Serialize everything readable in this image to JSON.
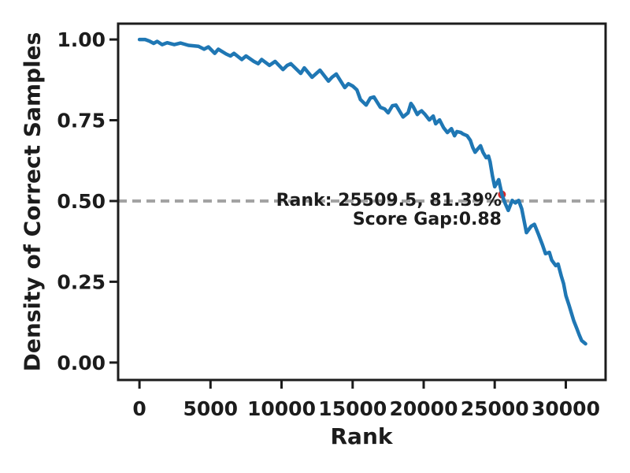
{
  "chart_data": {
    "type": "line",
    "xlabel": "Rank",
    "ylabel": "Density of Correct Samples",
    "x_ticks": [
      {
        "v": 0,
        "label": "0"
      },
      {
        "v": 5000,
        "label": "5000"
      },
      {
        "v": 10000,
        "label": "10000"
      },
      {
        "v": 15000,
        "label": "15000"
      },
      {
        "v": 20000,
        "label": "20000"
      },
      {
        "v": 25000,
        "label": "25000"
      },
      {
        "v": 30000,
        "label": "30000"
      }
    ],
    "y_ticks": [
      {
        "v": 0,
        "label": "0.00"
      },
      {
        "v": 0.25,
        "label": "0.25"
      },
      {
        "v": 0.5,
        "label": "0.50"
      },
      {
        "v": 0.75,
        "label": "0.75"
      },
      {
        "v": 1.0,
        "label": "1.00"
      }
    ],
    "xlim": [
      -1500,
      32800
    ],
    "ylim": [
      -0.054,
      1.049
    ],
    "grid": false,
    "legend": "none",
    "threshold": {
      "y": 0.5,
      "style": "dashed",
      "color": "#a3a3a3"
    },
    "annotation": {
      "line1": "Rank: 25509.5, 81.39%",
      "line2": "Score Gap:0.88"
    },
    "marker": {
      "rank": 25509.5,
      "density": 0.52,
      "color": "#d62728"
    },
    "series": [
      {
        "name": "density-of-correct-samples",
        "color": "#1f77b4",
        "points": [
          [
            0,
            1.0
          ],
          [
            400,
            1.0
          ],
          [
            700,
            0.995
          ],
          [
            1000,
            0.988
          ],
          [
            1250,
            0.994
          ],
          [
            1600,
            0.984
          ],
          [
            1950,
            0.99
          ],
          [
            2450,
            0.984
          ],
          [
            2900,
            0.989
          ],
          [
            3450,
            0.982
          ],
          [
            4150,
            0.979
          ],
          [
            4550,
            0.97
          ],
          [
            4850,
            0.977
          ],
          [
            5300,
            0.957
          ],
          [
            5550,
            0.97
          ],
          [
            6100,
            0.955
          ],
          [
            6400,
            0.949
          ],
          [
            6650,
            0.957
          ],
          [
            7200,
            0.938
          ],
          [
            7500,
            0.949
          ],
          [
            8050,
            0.932
          ],
          [
            8350,
            0.925
          ],
          [
            8600,
            0.938
          ],
          [
            9150,
            0.92
          ],
          [
            9550,
            0.932
          ],
          [
            10100,
            0.907
          ],
          [
            10400,
            0.92
          ],
          [
            10650,
            0.925
          ],
          [
            11350,
            0.895
          ],
          [
            11600,
            0.912
          ],
          [
            12150,
            0.883
          ],
          [
            12450,
            0.895
          ],
          [
            12700,
            0.905
          ],
          [
            13300,
            0.871
          ],
          [
            13550,
            0.883
          ],
          [
            13850,
            0.893
          ],
          [
            14450,
            0.851
          ],
          [
            14700,
            0.863
          ],
          [
            15000,
            0.856
          ],
          [
            15300,
            0.844
          ],
          [
            15550,
            0.814
          ],
          [
            15950,
            0.797
          ],
          [
            16250,
            0.819
          ],
          [
            16500,
            0.822
          ],
          [
            16950,
            0.79
          ],
          [
            17250,
            0.785
          ],
          [
            17500,
            0.773
          ],
          [
            17800,
            0.795
          ],
          [
            18050,
            0.797
          ],
          [
            18550,
            0.76
          ],
          [
            18900,
            0.773
          ],
          [
            19100,
            0.802
          ],
          [
            19250,
            0.793
          ],
          [
            19550,
            0.768
          ],
          [
            19700,
            0.775
          ],
          [
            19850,
            0.779
          ],
          [
            20100,
            0.768
          ],
          [
            20400,
            0.751
          ],
          [
            20670,
            0.763
          ],
          [
            20840,
            0.739
          ],
          [
            21120,
            0.751
          ],
          [
            21400,
            0.727
          ],
          [
            21670,
            0.712
          ],
          [
            21950,
            0.724
          ],
          [
            22170,
            0.702
          ],
          [
            22340,
            0.715
          ],
          [
            22620,
            0.712
          ],
          [
            22780,
            0.707
          ],
          [
            23060,
            0.702
          ],
          [
            23280,
            0.688
          ],
          [
            23450,
            0.666
          ],
          [
            23620,
            0.651
          ],
          [
            23840,
            0.663
          ],
          [
            24000,
            0.671
          ],
          [
            24170,
            0.651
          ],
          [
            24400,
            0.634
          ],
          [
            24560,
            0.639
          ],
          [
            24670,
            0.622
          ],
          [
            24840,
            0.578
          ],
          [
            25000,
            0.544
          ],
          [
            25280,
            0.566
          ],
          [
            25509.5,
            0.52
          ],
          [
            25730,
            0.493
          ],
          [
            25950,
            0.471
          ],
          [
            26230,
            0.502
          ],
          [
            26450,
            0.494
          ],
          [
            26680,
            0.502
          ],
          [
            26900,
            0.476
          ],
          [
            27230,
            0.402
          ],
          [
            27570,
            0.422
          ],
          [
            27790,
            0.428
          ],
          [
            28070,
            0.398
          ],
          [
            28345,
            0.366
          ],
          [
            28570,
            0.337
          ],
          [
            28845,
            0.341
          ],
          [
            29010,
            0.317
          ],
          [
            29290,
            0.3
          ],
          [
            29460,
            0.305
          ],
          [
            29680,
            0.268
          ],
          [
            29845,
            0.244
          ],
          [
            30010,
            0.207
          ],
          [
            30225,
            0.178
          ],
          [
            30390,
            0.154
          ],
          [
            30560,
            0.129
          ],
          [
            30780,
            0.105
          ],
          [
            30950,
            0.085
          ],
          [
            31115,
            0.068
          ],
          [
            31390,
            0.058
          ]
        ]
      }
    ]
  }
}
